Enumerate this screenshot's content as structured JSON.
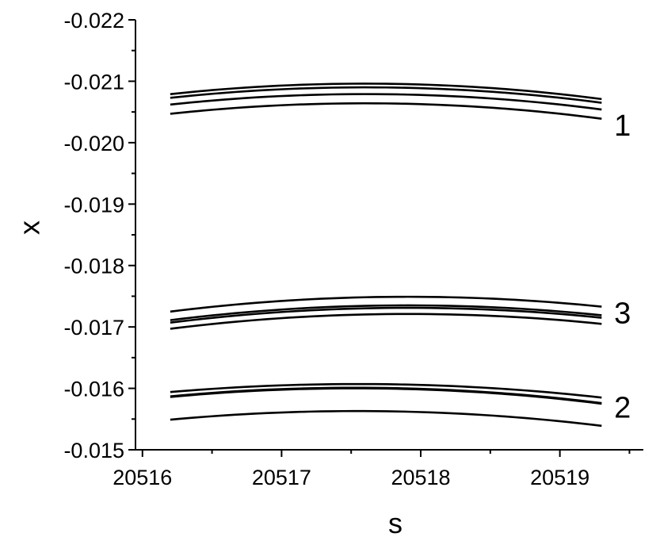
{
  "chart_data": {
    "type": "line",
    "xlabel": "s",
    "ylabel": "x",
    "xlim": [
      20515.95,
      20519.6
    ],
    "ylim": [
      -0.015,
      -0.022
    ],
    "y_axis_reversed": true,
    "x_ticks": [
      20516,
      20517,
      20518,
      20519
    ],
    "x_tick_labels": [
      "20516",
      "20517",
      "20518",
      "20519"
    ],
    "y_ticks": [
      -0.015,
      -0.016,
      -0.017,
      -0.018,
      -0.019,
      -0.02,
      -0.021,
      -0.022
    ],
    "y_tick_labels": [
      "-0.015",
      "-0.016",
      "-0.017",
      "-0.018",
      "-0.019",
      "-0.020",
      "-0.021",
      "-0.022"
    ],
    "grid": false,
    "legend": "none",
    "line_color": "#000000",
    "group_labels": [
      {
        "text": "1",
        "x": 20519.45,
        "y": -0.02028
      },
      {
        "text": "3",
        "x": 20519.45,
        "y": -0.01723
      },
      {
        "text": "2",
        "x": 20519.45,
        "y": -0.01569
      }
    ],
    "series": [
      {
        "x": [
          20516.2,
          20517.5,
          20519.3
        ],
        "y": [
          -0.02079,
          -0.02096,
          -0.02071
        ]
      },
      {
        "x": [
          20516.2,
          20517.5,
          20519.3
        ],
        "y": [
          -0.02073,
          -0.0209,
          -0.02065
        ]
      },
      {
        "x": [
          20516.2,
          20517.5,
          20519.3
        ],
        "y": [
          -0.02062,
          -0.02079,
          -0.02054
        ]
      },
      {
        "x": [
          20516.2,
          20517.5,
          20519.3
        ],
        "y": [
          -0.02047,
          -0.02064,
          -0.02039
        ]
      },
      {
        "x": [
          20516.2,
          20517.8,
          20519.3
        ],
        "y": [
          -0.01725,
          -0.01749,
          -0.01733
        ]
      },
      {
        "x": [
          20516.2,
          20517.8,
          20519.3
        ],
        "y": [
          -0.01711,
          -0.01735,
          -0.01719
        ]
      },
      {
        "x": [
          20516.2,
          20517.8,
          20519.3
        ],
        "y": [
          -0.01707,
          -0.01731,
          -0.01715
        ]
      },
      {
        "x": [
          20516.2,
          20517.8,
          20519.3
        ],
        "y": [
          -0.01697,
          -0.01721,
          -0.01705
        ]
      },
      {
        "x": [
          20516.2,
          20517.6,
          20519.3
        ],
        "y": [
          -0.01594,
          -0.01607,
          -0.01585
        ]
      },
      {
        "x": [
          20516.2,
          20517.6,
          20519.3
        ],
        "y": [
          -0.01587,
          -0.01601,
          -0.01576
        ]
      },
      {
        "x": [
          20516.2,
          20517.6,
          20519.3
        ],
        "y": [
          -0.01586,
          -0.016,
          -0.01575
        ]
      },
      {
        "x": [
          20516.2,
          20517.6,
          20519.3
        ],
        "y": [
          -0.01549,
          -0.01563,
          -0.01539
        ]
      }
    ]
  }
}
